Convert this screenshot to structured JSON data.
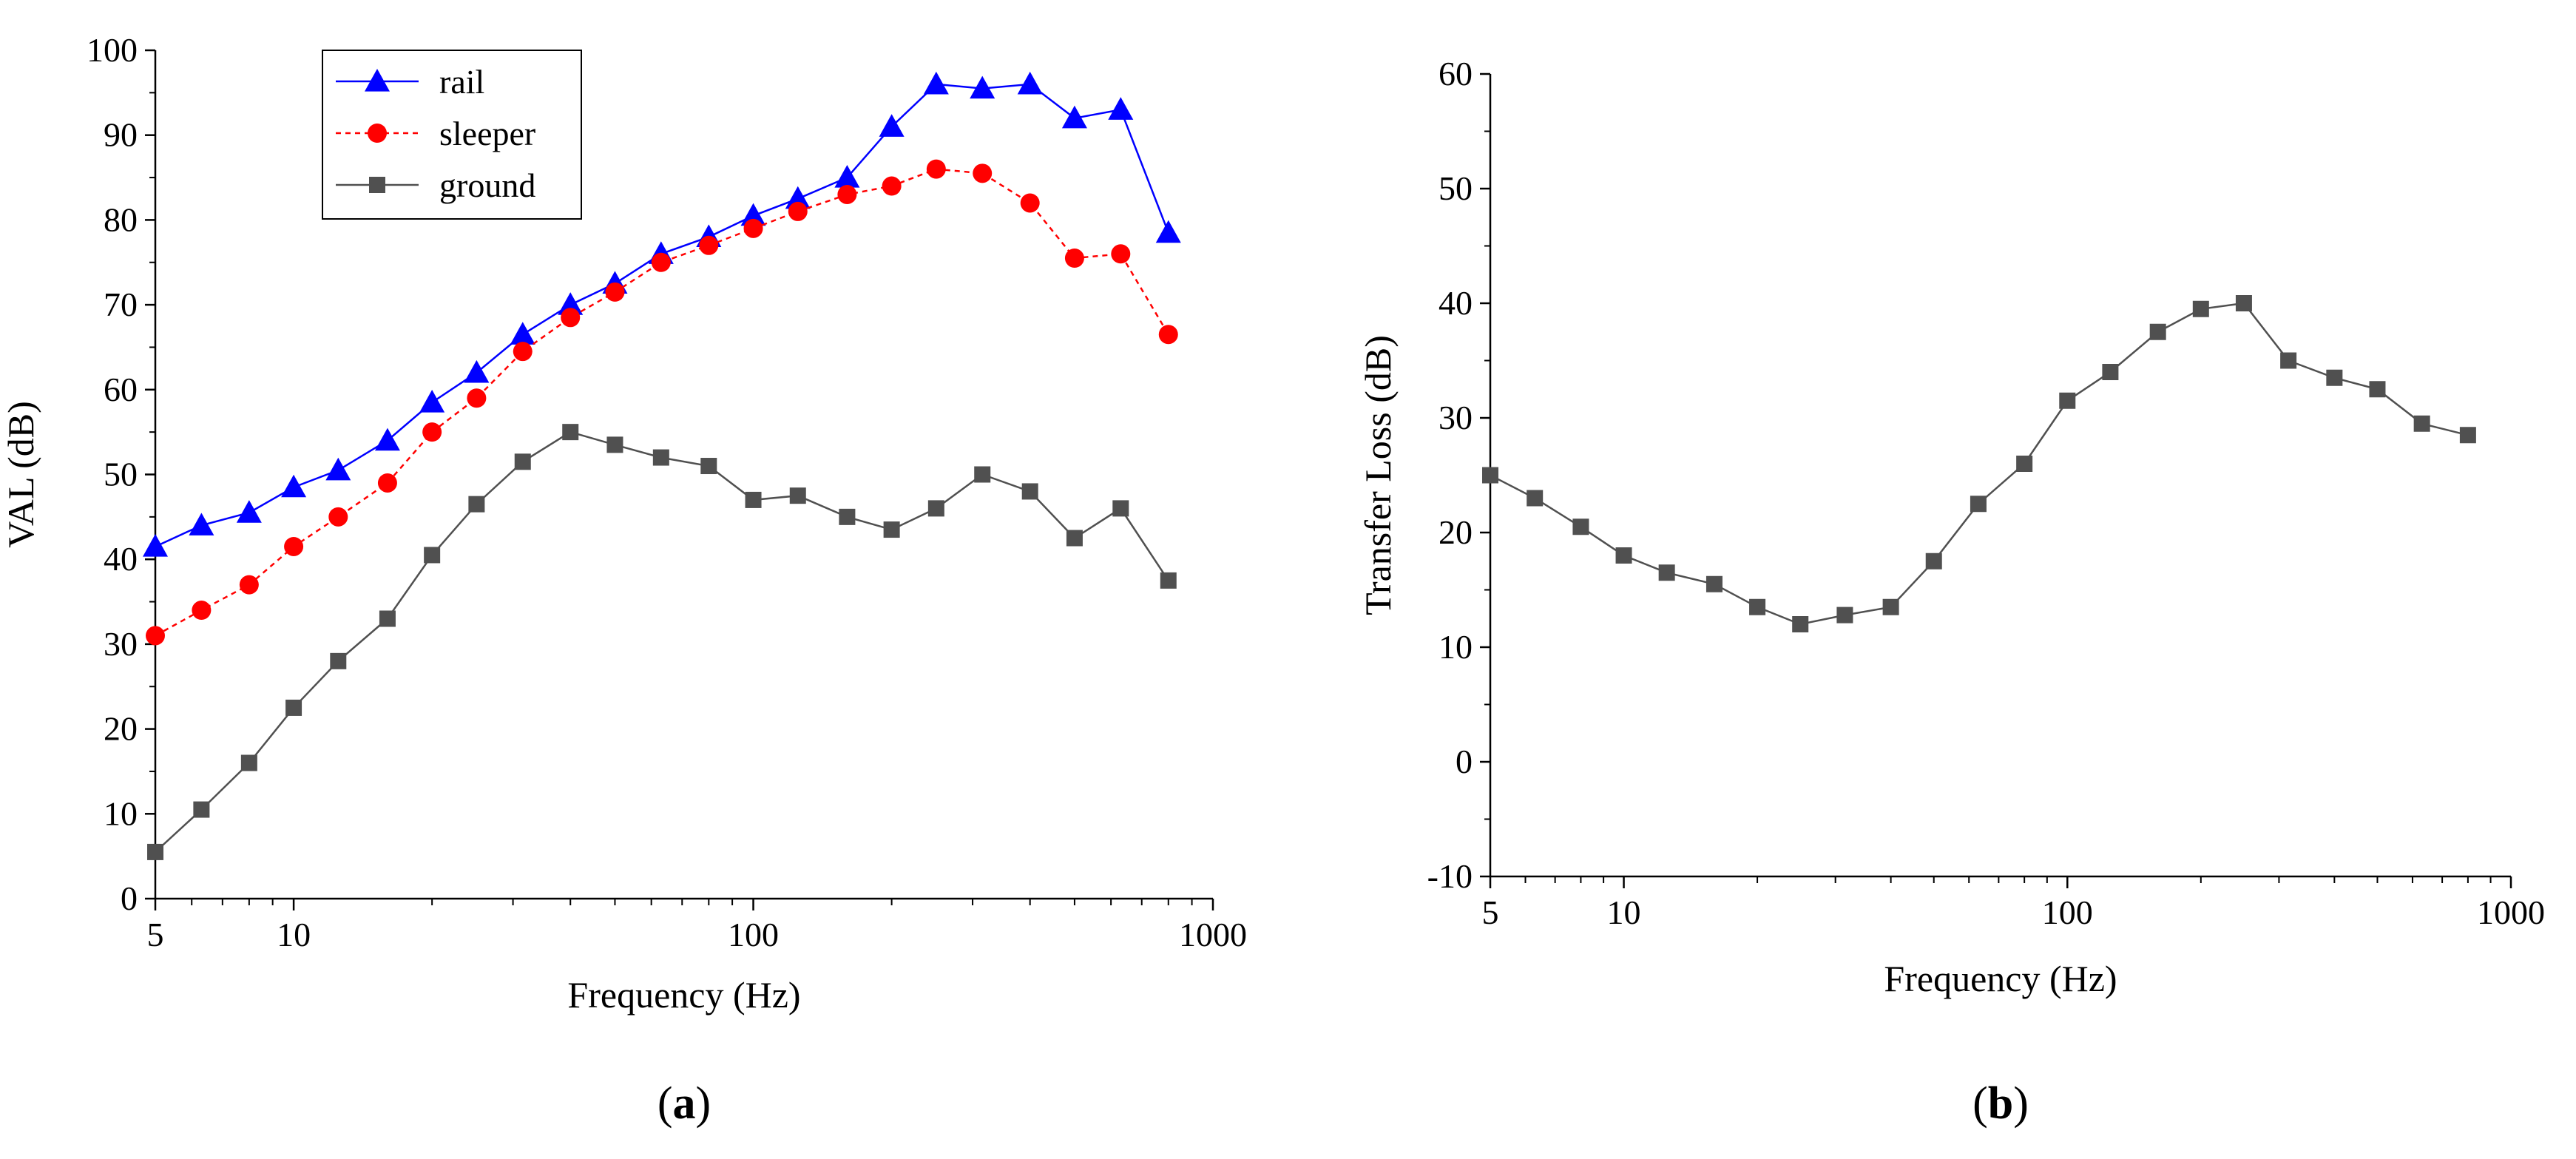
{
  "colors": {
    "rail": "#0000ff",
    "sleeper": "#ff0000",
    "ground": "#505050",
    "axis": "#000000"
  },
  "chart_data": [
    {
      "type": "line",
      "panel_label": "a",
      "xlabel": "Frequency (Hz)",
      "ylabel": "VAL (dB)",
      "x_scale": "log",
      "xlim": [
        5,
        1000
      ],
      "ylim": [
        0,
        100
      ],
      "x_ticks": [
        5,
        10,
        100,
        1000
      ],
      "x_tick_labels": [
        "5",
        "10",
        "100",
        "1000"
      ],
      "y_ticks": [
        0,
        10,
        20,
        30,
        40,
        50,
        60,
        70,
        80,
        90,
        100
      ],
      "y_tick_labels": [
        "0",
        "10",
        "20",
        "30",
        "40",
        "50",
        "60",
        "70",
        "80",
        "90",
        "100"
      ],
      "legend_position": "top-left",
      "grid": false,
      "x": [
        5,
        6.3,
        8,
        10,
        12.5,
        16,
        20,
        25,
        31.5,
        40,
        50,
        63,
        80,
        100,
        125,
        160,
        200,
        250,
        315,
        400,
        500,
        630,
        800
      ],
      "series": [
        {
          "name": "rail",
          "marker": "triangle",
          "line": "solid",
          "color": "#0000ff",
          "values": [
            41.5,
            44,
            45.5,
            48.5,
            50.5,
            54,
            58.5,
            62,
            66.5,
            70,
            72.5,
            76,
            78,
            80.5,
            82.5,
            85,
            91,
            96,
            95.5,
            96,
            92,
            93,
            78.5
          ]
        },
        {
          "name": "sleeper",
          "marker": "circle",
          "line": "dashed",
          "color": "#ff0000",
          "values": [
            31,
            34,
            37,
            41.5,
            45,
            49,
            55,
            59,
            64.5,
            68.5,
            71.5,
            75,
            77,
            79,
            81,
            83,
            84,
            86,
            85.5,
            82,
            75.5,
            76,
            66.5
          ]
        },
        {
          "name": "ground",
          "marker": "square",
          "line": "solid",
          "color": "#505050",
          "values": [
            5.5,
            10.5,
            16,
            22.5,
            28,
            33,
            40.5,
            46.5,
            51.5,
            55,
            53.5,
            52,
            51,
            47,
            47.5,
            45,
            43.5,
            46,
            50,
            48,
            42.5,
            46,
            37.5
          ]
        }
      ]
    },
    {
      "type": "line",
      "panel_label": "b",
      "xlabel": "Frequency (Hz)",
      "ylabel": "Transfer Loss (dB)",
      "x_scale": "log",
      "xlim": [
        5,
        1000
      ],
      "ylim": [
        -10,
        60
      ],
      "x_ticks": [
        5,
        10,
        100,
        1000
      ],
      "x_tick_labels": [
        "5",
        "10",
        "100",
        "1000"
      ],
      "y_ticks": [
        -10,
        0,
        10,
        20,
        30,
        40,
        50,
        60
      ],
      "y_tick_labels": [
        "-10",
        "0",
        "10",
        "20",
        "30",
        "40",
        "50",
        "60"
      ],
      "grid": false,
      "x": [
        5,
        6.3,
        8,
        10,
        12.5,
        16,
        20,
        25,
        31.5,
        40,
        50,
        63,
        80,
        100,
        125,
        160,
        200,
        250,
        315,
        400,
        500,
        630,
        800
      ],
      "series": [
        {
          "marker": "square",
          "line": "solid",
          "color": "#505050",
          "values": [
            25,
            23,
            20.5,
            18,
            16.5,
            15.5,
            13.5,
            12,
            12.8,
            13.5,
            17.5,
            22.5,
            26,
            31.5,
            34,
            37.5,
            39.5,
            40,
            35,
            33.5,
            32.5,
            29.5,
            28.5
          ]
        }
      ]
    }
  ]
}
